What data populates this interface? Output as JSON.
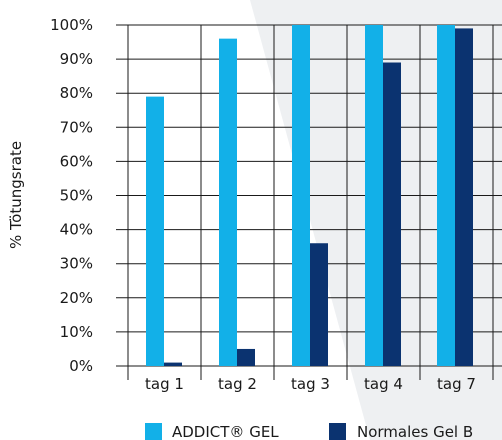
{
  "chart_data": {
    "type": "bar",
    "ylabel": "% Tötungsrate",
    "xlabel": "",
    "ylim": [
      0,
      100
    ],
    "yticks": [
      0,
      10,
      20,
      30,
      40,
      50,
      60,
      70,
      80,
      90,
      100
    ],
    "ytick_labels": [
      "0%",
      "10%",
      "20%",
      "30%",
      "40%",
      "50%",
      "60%",
      "70%",
      "80%",
      "90%",
      "100%"
    ],
    "categories": [
      "tag 1",
      "tag 2",
      "tag 3",
      "tag 4",
      "tag 7"
    ],
    "series": [
      {
        "name": "ADDICT® GEL",
        "color": "#12b0e8",
        "values": [
          79,
          96,
          100,
          100,
          100
        ]
      },
      {
        "name": "Normales Gel B",
        "color": "#0b3370",
        "values": [
          1,
          5,
          36,
          89,
          99
        ]
      }
    ],
    "grid": true,
    "legend_position": "bottom"
  },
  "colors": {
    "axis": "#1a1a1a",
    "background_shape": "#eef0f2"
  }
}
